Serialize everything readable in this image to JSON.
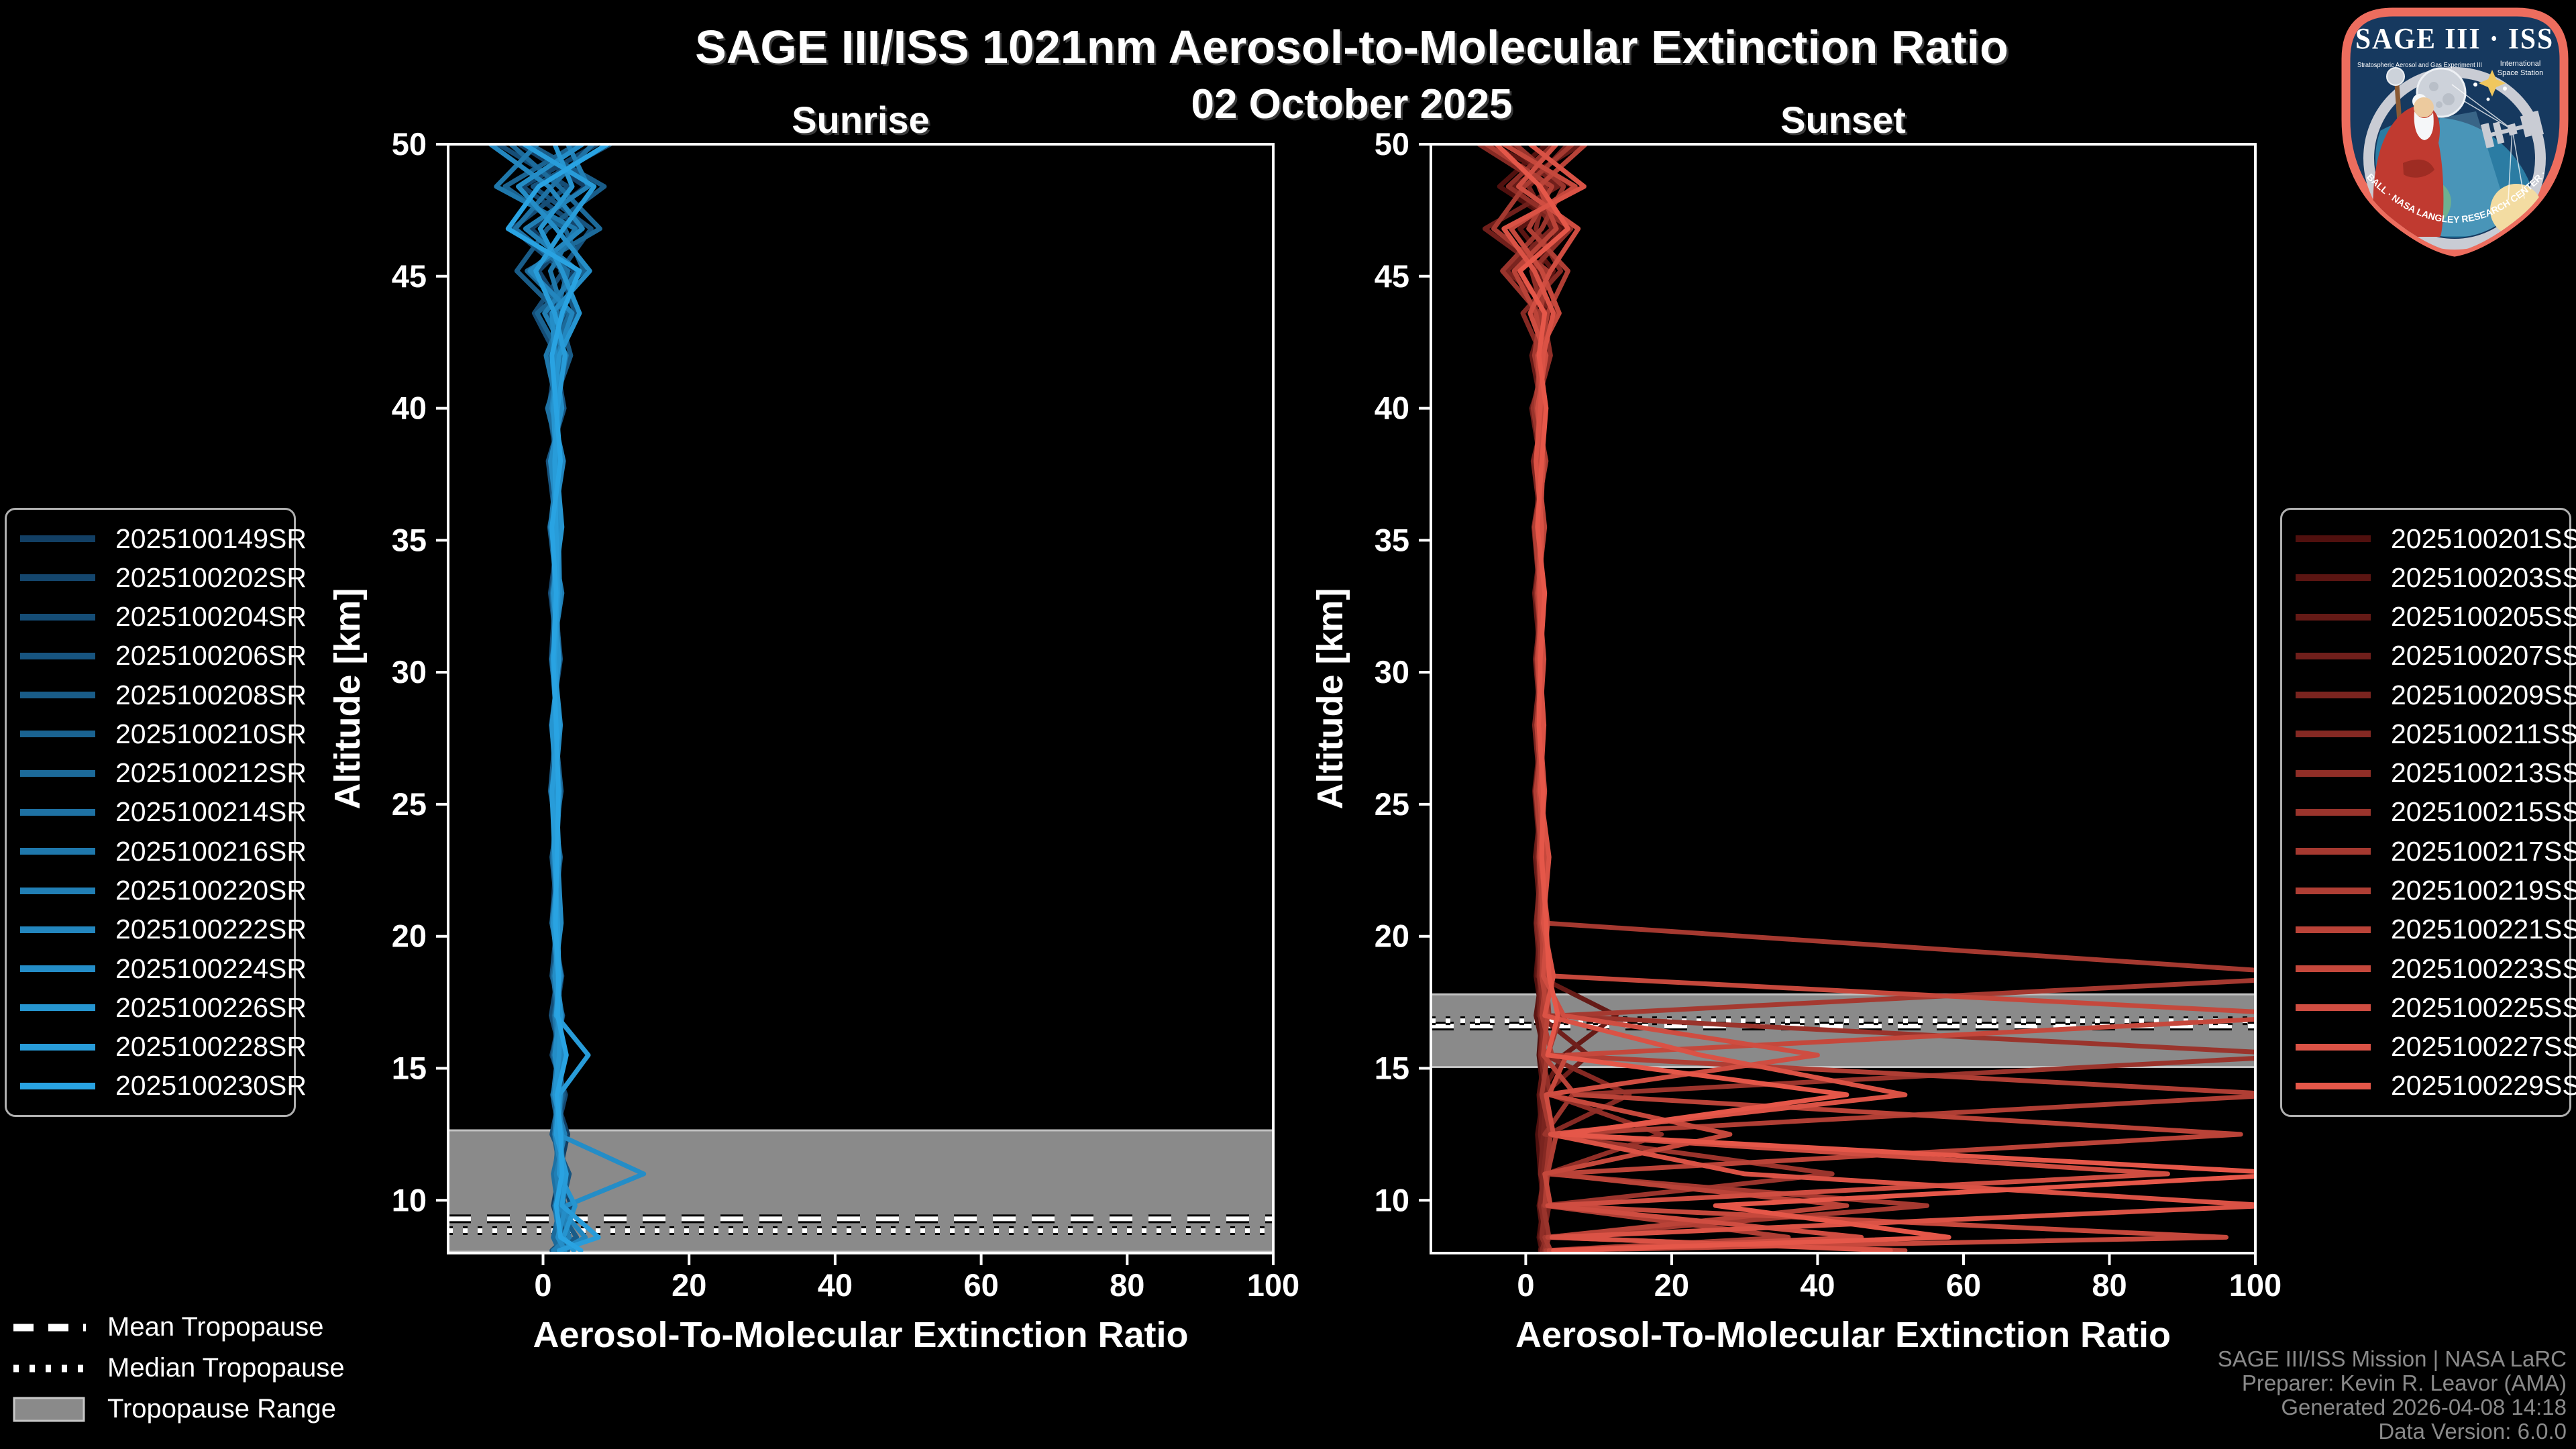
{
  "title": "SAGE III/ISS 1021nm Aerosol-to-Molecular Extinction Ratio",
  "subtitle": "02 October 2025",
  "tropopause_legend": {
    "mean": "Mean Tropopause",
    "median": "Median Tropopause",
    "range": "Tropopause Range"
  },
  "footer": [
    "SAGE III/ISS Mission | NASA LaRC",
    "Preparer: Kevin R. Leavor (AMA)",
    "Generated 2026-04-08 14:18",
    "Data Version: 6.0.0"
  ],
  "logo": {
    "title": "SAGE III · ISS",
    "sub_left": "Stratospheric Aerosol and Gas Experiment III",
    "sub_right_1": "International",
    "sub_right_2": "Space Station",
    "ring_text": "BALL · NASA LANGLEY RESEARCH CENTER · TAS-I · ESA",
    "border_color": "#ED6D5E",
    "field_color": "#16395F"
  },
  "colors": {
    "background": "#000000",
    "axis": "#FFFFFF",
    "tropopause_band": "#8A8A8A",
    "footer_text": "#8A8A8A"
  },
  "chart_data": [
    {
      "type": "line",
      "panel_id": "sunrise",
      "panel_title": "Sunrise",
      "xlabel": "Aerosol-To-Molecular Extinction Ratio",
      "ylabel": "Altitude [km]",
      "xlim": [
        -13,
        100
      ],
      "ylim": [
        8,
        50
      ],
      "xticks": [
        0,
        20,
        40,
        60,
        80,
        100
      ],
      "yticks": [
        10,
        15,
        20,
        25,
        30,
        35,
        40,
        45,
        50
      ],
      "grid": false,
      "tropopause": {
        "mean_km": 9.3,
        "median_km": 8.85,
        "range_km": [
          8.05,
          12.65
        ]
      },
      "altitudes_km": [
        50,
        48.4,
        46.8,
        45.2,
        43.6,
        42,
        40,
        38,
        35.5,
        33,
        30.5,
        28,
        25.5,
        23,
        20.5,
        18.5,
        17,
        15.5,
        14,
        12.5,
        11,
        9.8,
        8.6,
        8.1
      ],
      "series": [
        {
          "name": "2025100149SR",
          "color": "#123F64",
          "values": [
            -3.2,
            5.8,
            -1.6,
            4.2,
            0.8,
            2.6,
            1.4,
            2.2,
            1.1,
            2.4,
            1.3,
            2.0,
            1.5,
            1.8,
            1.2,
            2.6,
            1.8,
            2.9,
            1.6,
            3.4,
            2.2,
            1.4,
            2.8,
            2.0
          ]
        },
        {
          "name": "2025100202SR",
          "color": "#14466D",
          "values": [
            7.4,
            -2.8,
            5.2,
            -0.6,
            3.1,
            0.9,
            2.5,
            1.2,
            2.2,
            1.0,
            2.1,
            1.4,
            1.9,
            1.3,
            2.3,
            1.5,
            2.4,
            1.2,
            3.1,
            1.8,
            2.6,
            3.8,
            1.6,
            2.4
          ]
        },
        {
          "name": "2025100204SR",
          "color": "#154D76",
          "values": [
            -6.1,
            3.4,
            -4.2,
            2.8,
            -1.2,
            1.8,
            0.8,
            1.9,
            1.4,
            1.7,
            1.1,
            2.2,
            1.3,
            2.1,
            1.6,
            2.0,
            1.1,
            2.5,
            1.4,
            2.8,
            1.8,
            2.2,
            3.2,
            1.2
          ]
        },
        {
          "name": "2025100206SR",
          "color": "#17547F",
          "values": [
            9.2,
            -1.4,
            6.6,
            2.4,
            4.4,
            1.6,
            2.9,
            0.7,
            1.8,
            1.5,
            2.4,
            1.1,
            2.2,
            1.5,
            1.9,
            1.2,
            2.7,
            1.6,
            2.3,
            1.2,
            3.6,
            2.6,
            1.8,
            2.8
          ]
        },
        {
          "name": "2025100208SR",
          "color": "#195C88",
          "values": [
            -1.8,
            8.4,
            0.6,
            -3.6,
            2.2,
            3.8,
            1.2,
            2.6,
            0.9,
            2.0,
            1.6,
            1.8,
            1.0,
            2.4,
            1.4,
            2.2,
            1.5,
            2.0,
            2.8,
            1.5,
            2.4,
            1.8,
            4.6,
            1.6
          ]
        },
        {
          "name": "2025100210SR",
          "color": "#1A6391",
          "values": [
            4.6,
            -5.2,
            3.0,
            5.6,
            -0.8,
            2.4,
            1.8,
            1.4,
            2.3,
            1.2,
            1.9,
            1.6,
            2.5,
            1.2,
            2.1,
            1.7,
            1.9,
            2.6,
            1.3,
            2.2,
            1.6,
            3.0,
            2.2,
            3.4
          ]
        },
        {
          "name": "2025100212SR",
          "color": "#1C6A9A",
          "values": [
            -4.4,
            2.2,
            7.8,
            -2.2,
            3.6,
            1.4,
            2.2,
            1.8,
            1.2,
            2.2,
            1.4,
            2.3,
            1.1,
            2.0,
            1.6,
            1.9,
            2.2,
            1.4,
            2.6,
            1.8,
            2.0,
            2.4,
            1.4,
            2.2
          ]
        },
        {
          "name": "2025100214SR",
          "color": "#1E71A3",
          "values": [
            6.8,
            1.2,
            -3.8,
            3.4,
            1.8,
            2.8,
            0.6,
            2.4,
            1.6,
            1.8,
            2.2,
            1.3,
            2.0,
            1.7,
            2.4,
            1.4,
            2.0,
            1.8,
            2.2,
            2.6,
            1.4,
            2.0,
            2.6,
            1.8
          ]
        },
        {
          "name": "2025100216SR",
          "color": "#1F78AC",
          "values": [
            -0.8,
            -6.4,
            4.4,
            1.0,
            2.8,
            0.4,
            2.0,
            1.5,
            2.5,
            1.3,
            1.7,
            2.1,
            1.4,
            2.2,
            1.2,
            2.5,
            1.6,
            2.2,
            1.8,
            2.4,
            2.8,
            1.6,
            2.2,
            2.6
          ]
        },
        {
          "name": "2025100220SR",
          "color": "#217FB5",
          "values": [
            3.4,
            6.2,
            -2.4,
            4.8,
            0.2,
            3.2,
            1.6,
            2.0,
            1.0,
            2.6,
            1.2,
            1.9,
            1.8,
            1.4,
            2.2,
            1.8,
            2.6,
            2.0,
            1.4,
            3.0,
            1.8,
            2.4,
            3.6,
            1.4
          ]
        },
        {
          "name": "2025100222SR",
          "color": "#2386BE",
          "values": [
            -7.2,
            0.8,
            5.4,
            -1.8,
            4.0,
            2.0,
            1.2,
            2.8,
            1.4,
            1.6,
            2.0,
            1.5,
            2.3,
            1.8,
            1.6,
            2.4,
            1.8,
            2.8,
            2.0,
            1.6,
            2.6,
            2.0,
            5.8,
            2.4
          ]
        },
        {
          "name": "2025100224SR",
          "color": "#248DC7",
          "values": [
            5.4,
            -3.4,
            1.8,
            6.4,
            1.2,
            1.6,
            2.6,
            1.0,
            2.1,
            2.3,
            1.5,
            2.4,
            1.6,
            2.0,
            2.5,
            1.6,
            2.2,
            1.6,
            2.4,
            2.0,
            13.8,
            3.2,
            2.0,
            3.0
          ]
        },
        {
          "name": "2025100226SR",
          "color": "#2695D0",
          "values": [
            1.6,
            4.0,
            -0.4,
            2.6,
            5.0,
            2.2,
            1.4,
            1.8,
            2.6,
            1.4,
            2.2,
            1.2,
            1.8,
            2.2,
            1.4,
            2.0,
            2.4,
            2.2,
            1.6,
            2.6,
            2.2,
            4.4,
            2.8,
            4.2
          ]
        },
        {
          "name": "2025100228SR",
          "color": "#289CD9",
          "values": [
            -2.6,
            7.0,
            2.8,
            -1.0,
            1.6,
            3.0,
            2.0,
            1.6,
            1.8,
            2.0,
            1.6,
            2.2,
            1.2,
            1.6,
            2.0,
            2.2,
            1.8,
            6.2,
            2.2,
            1.8,
            3.2,
            2.6,
            7.6,
            2.2
          ]
        },
        {
          "name": "2025100230SR",
          "color": "#29A3E2",
          "values": [
            8.8,
            -0.6,
            -4.8,
            5.0,
            2.6,
            1.2,
            1.8,
            2.4,
            1.2,
            1.8,
            1.4,
            1.8,
            2.1,
            1.9,
            1.7,
            2.1,
            2.0,
            3.2,
            1.9,
            2.4,
            2.6,
            1.8,
            2.4,
            5.2
          ]
        }
      ]
    },
    {
      "type": "line",
      "panel_id": "sunset",
      "panel_title": "Sunset",
      "xlabel": "Aerosol-To-Molecular Extinction Ratio",
      "ylabel": "Altitude [km]",
      "xlim": [
        -13,
        100
      ],
      "ylim": [
        8,
        50
      ],
      "xticks": [
        0,
        20,
        40,
        60,
        80,
        100
      ],
      "yticks": [
        10,
        15,
        20,
        25,
        30,
        35,
        40,
        45,
        50
      ],
      "grid": false,
      "tropopause": {
        "mean_km": 16.6,
        "median_km": 16.8,
        "range_km": [
          15.05,
          17.8
        ]
      },
      "altitudes_km": [
        50,
        48.4,
        46.8,
        45.2,
        43.6,
        42,
        40,
        38,
        35.5,
        33,
        30.5,
        28,
        25.5,
        23,
        20.5,
        18.5,
        17,
        15.5,
        14,
        12.5,
        11,
        9.8,
        8.6,
        8.1
      ],
      "series": [
        {
          "name": "2025100201SS",
          "color": "#50100E",
          "values": [
            2.8,
            -3.6,
            5.4,
            -1.2,
            3.4,
            1.4,
            2.4,
            1.2,
            2.0,
            1.5,
            2.2,
            1.3,
            2.1,
            1.5,
            2.0,
            1.4,
            2.2,
            1.8,
            2.4,
            1.6,
            2.0,
            2.4,
            1.8,
            2.2
          ]
        },
        {
          "name": "2025100203SS",
          "color": "#5B1512",
          "values": [
            -4.8,
            6.6,
            -0.8,
            3.8,
            0.6,
            2.8,
            1.2,
            2.4,
            1.3,
            2.1,
            1.4,
            2.2,
            1.2,
            2.0,
            1.6,
            2.2,
            1.4,
            2.6,
            1.8,
            2.2,
            2.6,
            1.8,
            2.4,
            2.0
          ]
        },
        {
          "name": "2025100205SS",
          "color": "#651A16",
          "values": [
            7.6,
            -1.8,
            4.6,
            1.6,
            2.6,
            0.8,
            2.2,
            1.6,
            2.4,
            1.2,
            2.0,
            1.5,
            2.3,
            1.3,
            2.1,
            1.6,
            12.4,
            5.2,
            2.0,
            2.8,
            2.2,
            2.8,
            2.0,
            2.6
          ]
        },
        {
          "name": "2025100207SS",
          "color": "#701F1B",
          "values": [
            -2.2,
            4.4,
            -5.6,
            2.4,
            1.2,
            3.2,
            0.8,
            2.0,
            1.4,
            2.4,
            1.3,
            2.1,
            1.5,
            2.2,
            1.4,
            2.0,
            1.8,
            8.6,
            2.4,
            2.0,
            2.6,
            2.2,
            2.8,
            2.4
          ]
        },
        {
          "name": "2025100209SS",
          "color": "#7A241F",
          "values": [
            5.8,
            0.4,
            3.6,
            -2.6,
            4.2,
            1.8,
            2.8,
            1.0,
            2.2,
            1.6,
            2.2,
            1.2,
            2.0,
            1.6,
            2.3,
            1.8,
            2.4,
            2.0,
            2.8,
            2.4,
            2.0,
            3.2,
            2.4,
            2.8
          ]
        },
        {
          "name": "2025100211SS",
          "color": "#852923",
          "values": [
            -6.4,
            2.8,
            1.4,
            4.8,
            -0.4,
            2.2,
            1.6,
            2.6,
            1.1,
            1.9,
            1.6,
            2.3,
            1.3,
            2.1,
            1.5,
            2.4,
            2.0,
            2.6,
            14.2,
            3.0,
            2.4,
            2.0,
            2.8,
            2.2
          ]
        },
        {
          "name": "2025100213SS",
          "color": "#902E27",
          "values": [
            3.8,
            -2.4,
            6.2,
            0.8,
            2.4,
            3.4,
            1.4,
            1.8,
            2.2,
            1.4,
            2.4,
            1.6,
            2.2,
            1.8,
            2.1,
            1.9,
            2.6,
            2.2,
            3.4,
            18.6,
            2.8,
            2.6,
            2.2,
            3.0
          ]
        },
        {
          "name": "2025100215SS",
          "color": "#9A342C",
          "values": [
            -1.4,
            5.2,
            2.2,
            -3.2,
            1.8,
            2.6,
            1.0,
            2.2,
            1.6,
            2.2,
            1.5,
            2.0,
            1.6,
            2.4,
            1.8,
            2.8,
            3.2,
            108,
            6.4,
            2.6,
            42,
            2.4,
            3.2,
            2.6
          ]
        },
        {
          "name": "2025100217SS",
          "color": "#A53930",
          "values": [
            6.4,
            -0.2,
            -4.4,
            3.0,
            2.0,
            1.2,
            2.6,
            1.4,
            2.4,
            1.8,
            2.1,
            1.7,
            2.4,
            2.0,
            2.6,
            112,
            4.8,
            3.0,
            2.2,
            3.4,
            2.8,
            55,
            2.6,
            3.4
          ]
        },
        {
          "name": "2025100219SS",
          "color": "#AF3E34",
          "values": [
            -5.4,
            3.6,
            0.4,
            5.8,
            3.0,
            2.0,
            1.4,
            2.8,
            1.2,
            2.0,
            1.8,
            2.4,
            1.4,
            2.2,
            2.0,
            2.8,
            2.2,
            3.6,
            104,
            4.2,
            3.0,
            2.6,
            36,
            2.8
          ]
        },
        {
          "name": "2025100221SS",
          "color": "#BA4338",
          "values": [
            8.2,
            1.8,
            4.2,
            -1.6,
            1.4,
            2.4,
            1.8,
            1.6,
            2.6,
            1.6,
            2.3,
            1.5,
            2.2,
            1.8,
            2.4,
            2.2,
            3.0,
            2.4,
            6.8,
            98,
            3.6,
            44,
            3.0,
            52
          ]
        },
        {
          "name": "2025100223SS",
          "color": "#C5483C",
          "values": [
            -3.0,
            6.8,
            -2.0,
            2.2,
            4.6,
            1.6,
            2.2,
            2.0,
            1.8,
            2.4,
            1.6,
            2.2,
            1.8,
            2.6,
            2.2,
            3.4,
            110,
            5.6,
            3.2,
            28,
            2.6,
            3.4,
            96,
            3.2
          ]
        },
        {
          "name": "2025100225SS",
          "color": "#CF4D41",
          "values": [
            4.2,
            -1.0,
            7.2,
            3.4,
            0.6,
            2.8,
            1.6,
            2.4,
            2.0,
            1.8,
            2.5,
            1.9,
            2.6,
            2.0,
            3.0,
            2.4,
            5.2,
            40,
            2.8,
            3.8,
            88,
            3.0,
            46,
            4.0
          ]
        },
        {
          "name": "2025100227SS",
          "color": "#DA5245",
          "values": [
            0.6,
            8.0,
            -3.0,
            1.2,
            3.8,
            2.4,
            2.0,
            1.4,
            2.2,
            2.0,
            1.9,
            2.5,
            2.0,
            3.2,
            2.4,
            3.8,
            2.6,
            24,
            52,
            3.4,
            30,
            102,
            3.6,
            50
          ]
        },
        {
          "name": "2025100229SS",
          "color": "#E55749",
          "values": [
            -4.0,
            2.0,
            5.8,
            -0.8,
            2.6,
            1.8,
            2.8,
            2.2,
            1.6,
            2.6,
            2.0,
            1.8,
            2.4,
            2.2,
            2.8,
            3.2,
            4.4,
            3.0,
            44,
            5.0,
            106,
            26,
            58,
            3.8
          ]
        }
      ]
    }
  ]
}
